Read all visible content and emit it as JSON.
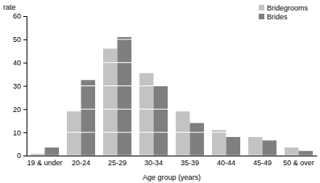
{
  "chart_data": {
    "type": "bar",
    "y_label": "rate",
    "x_label": "Age group (years)",
    "categories": [
      "19 & under",
      "20-24",
      "25-29",
      "30-34",
      "35-39",
      "40-44",
      "45-49",
      "50 & over"
    ],
    "series": [
      {
        "name": "Bridegrooms",
        "color": "#c3c3c3",
        "values": [
          0.8,
          19,
          46,
          35.5,
          19,
          11,
          8,
          3.5
        ]
      },
      {
        "name": "Brides",
        "color": "#7f7f7f",
        "values": [
          3.5,
          32.5,
          51,
          30,
          14,
          8,
          6.5,
          2
        ]
      }
    ],
    "ylim": [
      0,
      60
    ],
    "yticks": [
      0,
      10,
      20,
      30,
      40,
      50,
      60
    ],
    "grid": true,
    "legend": "top-right"
  }
}
